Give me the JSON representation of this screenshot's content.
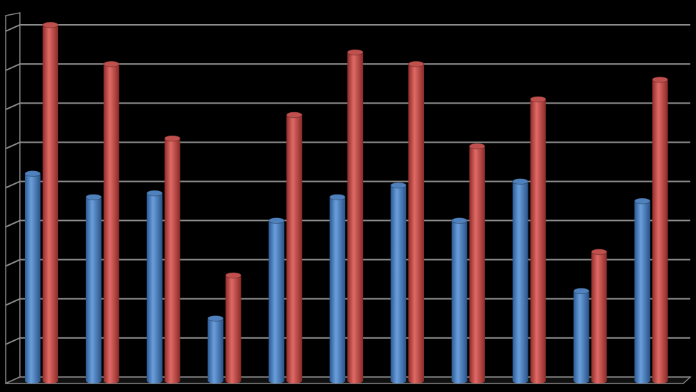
{
  "chart_data": {
    "type": "bar3d",
    "categories": [
      null,
      null,
      null,
      null,
      null,
      null,
      null,
      null,
      null,
      null,
      null
    ],
    "series": [
      {
        "color": "#4f81bd",
        "values": [
          5.2,
          4.6,
          4.7,
          1.5,
          4.0,
          4.6,
          4.9,
          4.0,
          5.0,
          2.2,
          4.5
        ]
      },
      {
        "color": "#c0504d",
        "values": [
          9.0,
          8.0,
          6.1,
          2.6,
          6.7,
          8.3,
          8.0,
          5.9,
          7.1,
          3.2,
          7.6
        ]
      }
    ],
    "ylim": [
      0,
      9
    ],
    "yticks": [
      0,
      1,
      2,
      3,
      4,
      5,
      6,
      7,
      8,
      9
    ],
    "grid": true
  }
}
